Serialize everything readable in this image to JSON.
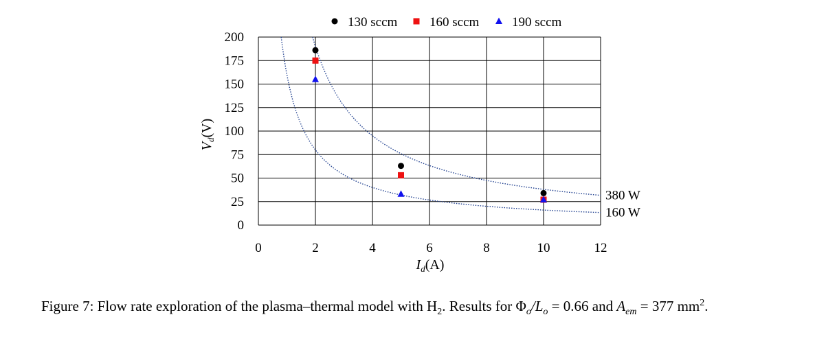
{
  "chart_data": {
    "type": "scatter",
    "title": "",
    "xlabel": {
      "symbol": "I",
      "sub": "d",
      "unit": "(A)"
    },
    "ylabel": {
      "symbol": "V",
      "sub": "d",
      "unit": "(V)"
    },
    "xlim": [
      0,
      12
    ],
    "ylim": [
      0,
      200
    ],
    "xticks": [
      0,
      2,
      4,
      6,
      8,
      10,
      12
    ],
    "yticks": [
      0,
      25,
      50,
      75,
      100,
      125,
      150,
      175,
      200
    ],
    "grid": true,
    "legend_position": "top",
    "series": [
      {
        "name": "130 sccm",
        "marker": "circle",
        "color": "#000000",
        "x": [
          2,
          5,
          10
        ],
        "y": [
          186,
          63,
          34
        ]
      },
      {
        "name": "160 sccm",
        "marker": "square",
        "color": "#ee1111",
        "x": [
          2,
          5,
          10
        ],
        "y": [
          175,
          53,
          27
        ]
      },
      {
        "name": "190 sccm",
        "marker": "triangle",
        "color": "#1111ee",
        "x": [
          2,
          5,
          10
        ],
        "y": [
          155,
          33,
          27
        ]
      }
    ],
    "curves": [
      {
        "label": "380 W",
        "power": 380,
        "color": "#1f3f8f"
      },
      {
        "label": "160 W",
        "power": 160,
        "color": "#1f3f8f"
      }
    ]
  },
  "caption": {
    "prefix": "Figure 7:",
    "text1": "Flow rate exploration of the plasma–thermal model with H",
    "h_sub": "2",
    "text2": ".  Results for Φ",
    "o1": "o",
    "slash": "/L",
    "o2": "o",
    "eq1": " = 0.66 and ",
    "a": "A",
    "em": "em",
    "eq2": " = 377 mm",
    "sq": "2",
    "end": "."
  }
}
